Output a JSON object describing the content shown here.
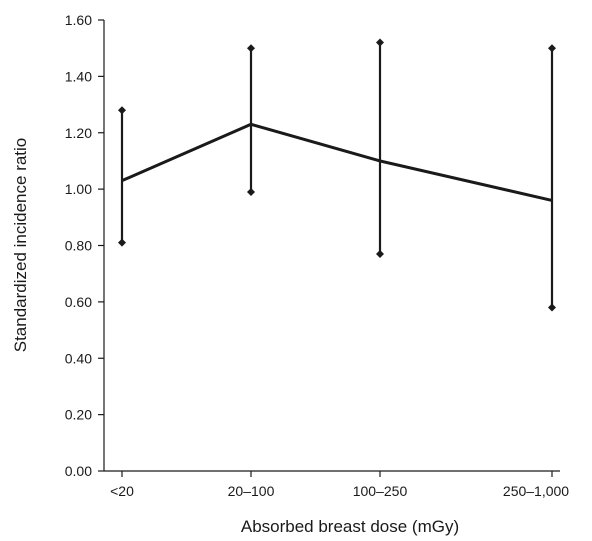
{
  "chart_data": {
    "type": "line",
    "title": "",
    "xlabel": "Absorbed breast dose (mGy)",
    "ylabel": "Standardized incidence ratio",
    "categories": [
      "<20",
      "20–100",
      "100–250",
      "250–1,000"
    ],
    "series": [
      {
        "values": [
          1.03,
          1.23,
          1.1,
          0.96
        ],
        "lower": [
          0.81,
          0.99,
          0.77,
          0.58
        ],
        "upper": [
          1.28,
          1.5,
          1.52,
          1.5
        ]
      }
    ],
    "ylim": [
      0,
      1.6
    ],
    "yticks": [
      "0.00",
      "0.20",
      "0.40",
      "0.60",
      "0.80",
      "1.00",
      "1.20",
      "1.40",
      "1.60"
    ],
    "grid": false,
    "legend": "none",
    "colors": {
      "line": "#1a1a1a"
    }
  }
}
